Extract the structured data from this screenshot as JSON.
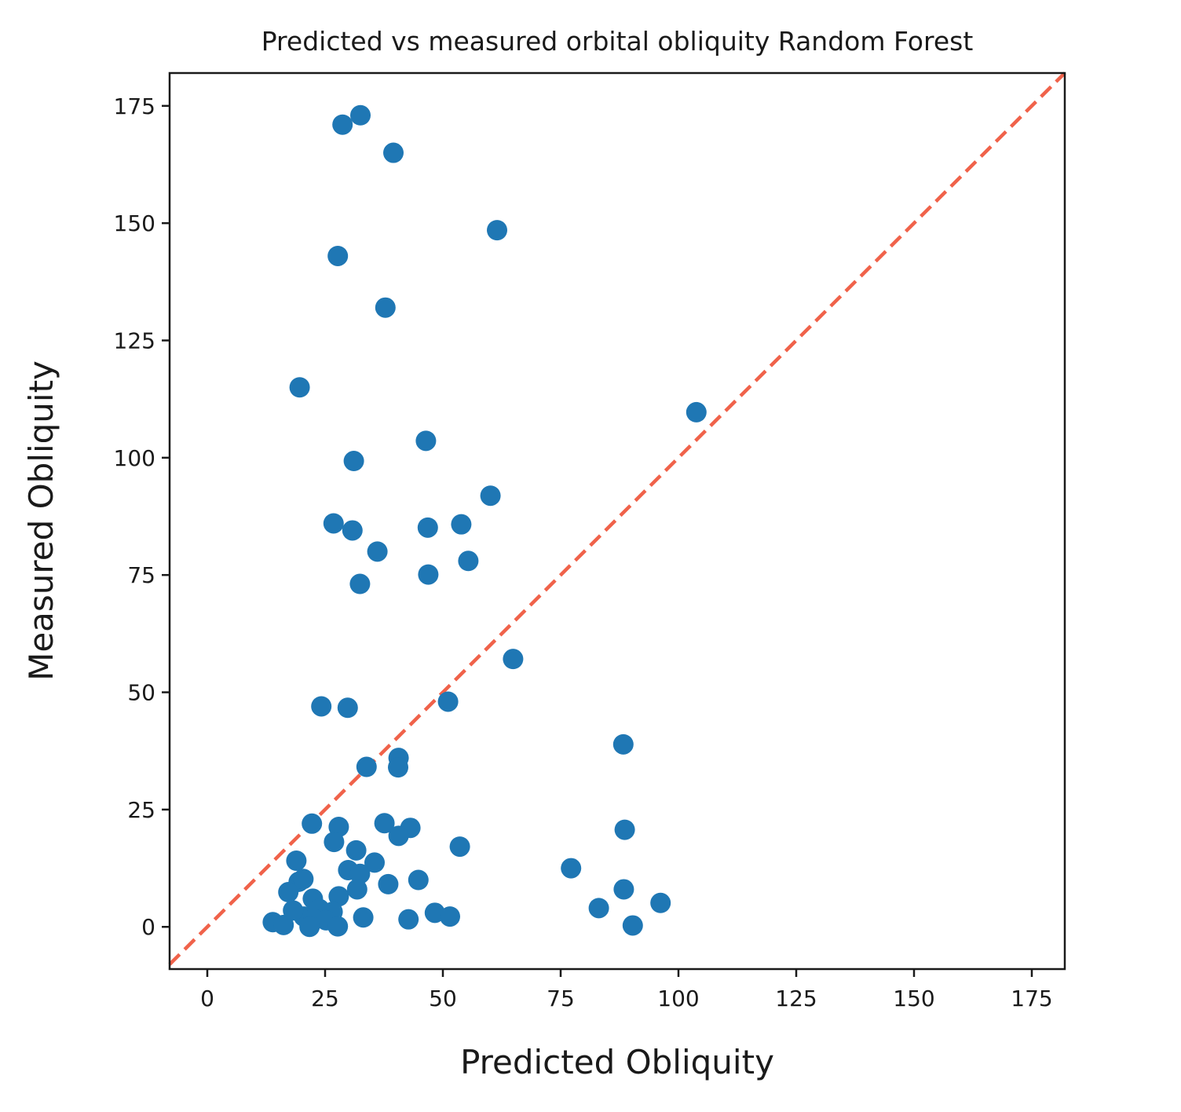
{
  "chart_data": {
    "type": "scatter",
    "title": "Predicted vs measured orbital obliquity Random Forest",
    "xlabel": "Predicted Obliquity",
    "ylabel": "Measured Obliquity",
    "xlim": [
      -8,
      182
    ],
    "ylim": [
      -9,
      182
    ],
    "xticks": [
      "0",
      "25",
      "50",
      "75",
      "100",
      "125",
      "150",
      "175"
    ],
    "yticks": [
      "0",
      "25",
      "50",
      "75",
      "100",
      "125",
      "150",
      "175"
    ],
    "grid": false,
    "legend": "none",
    "colors": {
      "points": "#1f77b4",
      "reference_line": "#f0624a",
      "axes": "#1a1a1a"
    },
    "reference_line": {
      "style": "dashed",
      "from": [
        -8,
        -8
      ],
      "to": [
        182,
        182
      ]
    },
    "series": [
      {
        "points": [
          [
            32.5,
            173
          ],
          [
            28.7,
            171
          ],
          [
            39.5,
            165
          ],
          [
            61.5,
            148.5
          ],
          [
            27.7,
            143
          ],
          [
            37.8,
            132
          ],
          [
            19.6,
            115
          ],
          [
            103.8,
            109.7
          ],
          [
            46.4,
            103.6
          ],
          [
            31.1,
            99.3
          ],
          [
            60.1,
            91.9
          ],
          [
            26.8,
            86
          ],
          [
            30.8,
            84.5
          ],
          [
            53.9,
            85.8
          ],
          [
            46.8,
            85.1
          ],
          [
            36.1,
            80
          ],
          [
            55.4,
            78
          ],
          [
            46.9,
            75.1
          ],
          [
            32.4,
            73.1
          ],
          [
            64.9,
            57.1
          ],
          [
            51.1,
            48
          ],
          [
            24.2,
            47
          ],
          [
            29.8,
            46.7
          ],
          [
            88.3,
            38.9
          ],
          [
            40.6,
            36
          ],
          [
            33.8,
            34.1
          ],
          [
            40.5,
            34
          ],
          [
            22.2,
            22
          ],
          [
            27.9,
            21.3
          ],
          [
            37.6,
            22.1
          ],
          [
            43.1,
            21.1
          ],
          [
            40.6,
            19.4
          ],
          [
            88.6,
            20.7
          ],
          [
            26.9,
            18.1
          ],
          [
            53.6,
            17.1
          ],
          [
            31.6,
            16.3
          ],
          [
            35.5,
            13.7
          ],
          [
            18.9,
            14.1
          ],
          [
            77.2,
            12.5
          ],
          [
            29.9,
            12.1
          ],
          [
            32.4,
            11.3
          ],
          [
            19.4,
            9.6
          ],
          [
            44.8,
            10
          ],
          [
            20.4,
            10.2
          ],
          [
            38.4,
            9.1
          ],
          [
            88.4,
            8
          ],
          [
            17.2,
            7.4
          ],
          [
            31.8,
            8
          ],
          [
            22.4,
            6
          ],
          [
            27.9,
            6.5
          ],
          [
            96.2,
            5.1
          ],
          [
            83.1,
            4
          ],
          [
            23.8,
            3.8
          ],
          [
            26.6,
            3.2
          ],
          [
            48.3,
            3
          ],
          [
            33.1,
            2
          ],
          [
            51.5,
            2.2
          ],
          [
            42.7,
            1.6
          ],
          [
            20.5,
            2.2
          ],
          [
            22.6,
            1.7
          ],
          [
            25.2,
            1.4
          ],
          [
            13.9,
            1
          ],
          [
            16.2,
            0.4
          ],
          [
            21.7,
            0
          ],
          [
            27.7,
            0.1
          ],
          [
            90.3,
            0.3
          ],
          [
            18.2,
            3.5
          ]
        ]
      }
    ]
  }
}
